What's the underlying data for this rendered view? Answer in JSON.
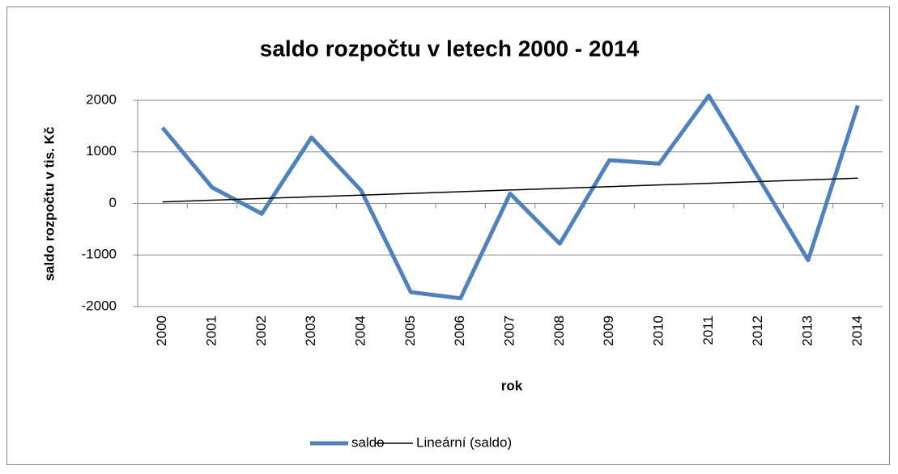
{
  "chart_data": {
    "type": "line",
    "title": "saldo rozpočtu v letech 2000 - 2014",
    "y_label": "saldo rozpočtu v tis. Kč",
    "x_label": "rok",
    "categories": [
      "2000",
      "2001",
      "2002",
      "2003",
      "2004",
      "2005",
      "2006",
      "2007",
      "2008",
      "2009",
      "2010",
      "2011",
      "2012",
      "2013",
      "2014"
    ],
    "series": [
      {
        "name": "saldo",
        "color": "#4f81bd",
        "values": [
          1470,
          310,
          -200,
          1280,
          250,
          -1720,
          -1840,
          190,
          -780,
          840,
          770,
          2090,
          500,
          -1100,
          1900
        ]
      },
      {
        "name": "Lineární (saldo)",
        "color": "#000000",
        "values": [
          30,
          63,
          96,
          129,
          161,
          194,
          227,
          260,
          293,
          326,
          359,
          391,
          424,
          457,
          490
        ]
      }
    ],
    "ylim": [
      -2000,
      2000
    ],
    "yticks": [
      -2000,
      -1000,
      0,
      1000,
      2000
    ],
    "grid": true,
    "legend": "bottom"
  }
}
